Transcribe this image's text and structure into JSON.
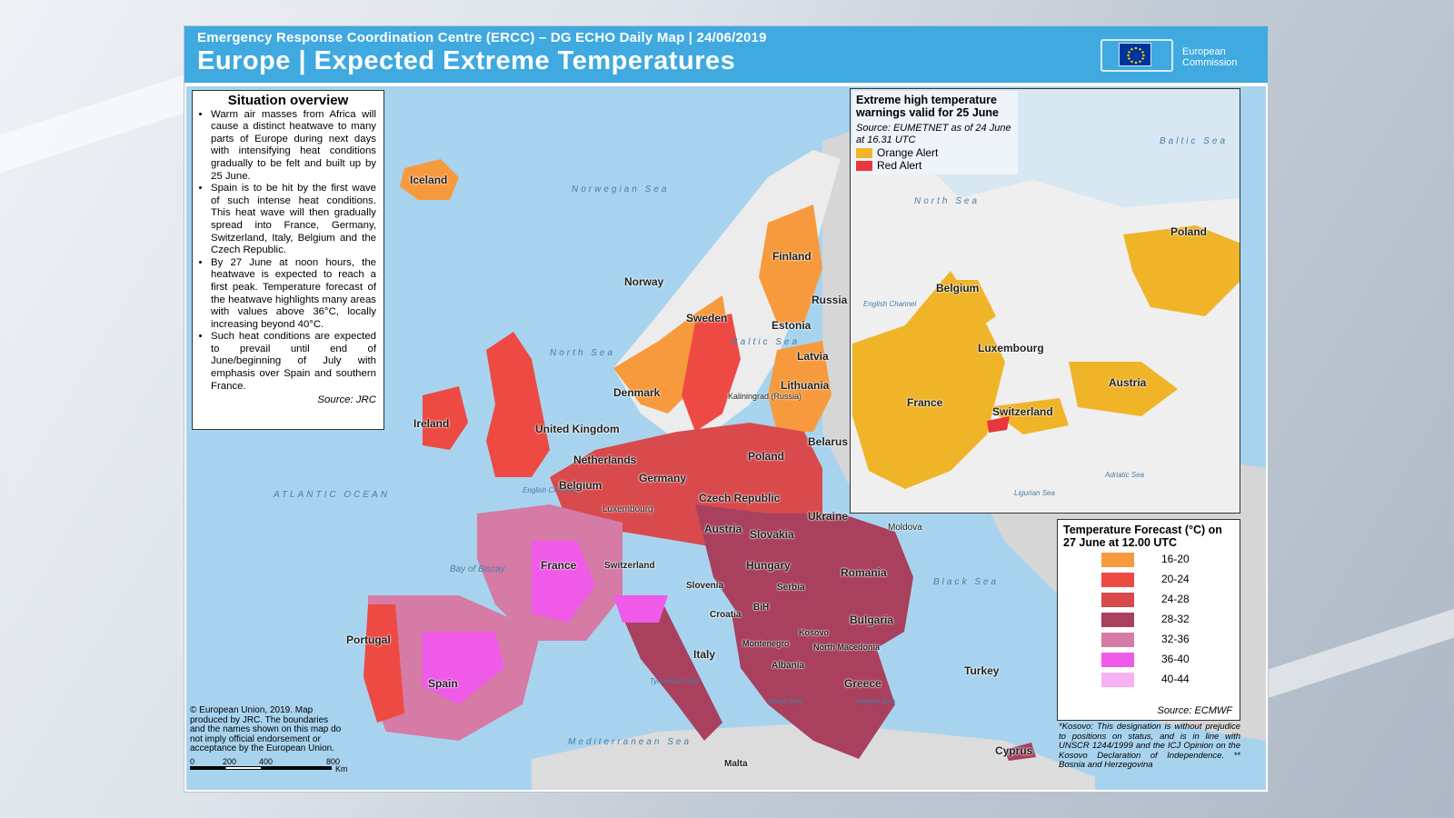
{
  "header": {
    "subtitle": "Emergency Response Coordination Centre (ERCC) – DG ECHO Daily Map | 24/06/2019",
    "title": "Europe | Expected Extreme Temperatures",
    "logo_line1": "European",
    "logo_line2": "Commission"
  },
  "overview": {
    "heading": "Situation overview",
    "bullets": [
      "Warm air masses from Africa will cause a distinct heatwave to many parts of Europe during next days with intensifying heat conditions gradually to be felt and built up by 25 June.",
      "Spain is to be hit by the first wave of such intense heat conditions. This heat wave will then gradually spread into France, Germany, Switzerland, Italy, Belgium and the Czech Republic.",
      "By 27 June at noon hours, the heatwave is expected to reach a first peak. Temperature forecast of the heatwave highlights many areas with values above 36°C, locally increasing beyond 40°C.",
      "Such heat conditions are expected to prevail until end of June/beginning of July with emphasis over Spain and southern France."
    ],
    "source": "Source: JRC"
  },
  "inset": {
    "heading": "Extreme high temperature warnings valid for 25 June",
    "source": "Source: EUMETNET as of 24 June at 16.31 UTC",
    "legend": [
      {
        "label": "Orange Alert",
        "color": "#f0b429"
      },
      {
        "label": "Red Alert",
        "color": "#e8383d"
      }
    ],
    "labels": [
      "Poland",
      "Belgium",
      "Luxembourg",
      "France",
      "Austria",
      "Switzerland"
    ],
    "seas": [
      "North Sea",
      "Baltic Sea",
      "English Channel",
      "Ligurian Sea",
      "Adriatic Sea"
    ]
  },
  "legend": {
    "heading": "Temperature Forecast (°C) on 27 June at 12.00 UTC",
    "items": [
      {
        "label": "16-20",
        "color": "#f79a3e"
      },
      {
        "label": "20-24",
        "color": "#ee4a44"
      },
      {
        "label": "24-28",
        "color": "#d84a4c"
      },
      {
        "label": "28-32",
        "color": "#a8405e"
      },
      {
        "label": "32-36",
        "color": "#d67aa6"
      },
      {
        "label": "36-40",
        "color": "#f05ae8"
      },
      {
        "label": "40-44",
        "color": "#f6b2f2"
      }
    ],
    "source": "Source: ECMWF"
  },
  "copyright": "© European Union, 2019. Map produced by JRC. The boundaries and the names shown on this map do not imply official endorsement or acceptance by the European Union.",
  "scale_labels": [
    "0",
    "200",
    "400",
    "800",
    "Km"
  ],
  "kosovo_note": "*Kosovo: This designation is without prejudice to positions on status, and is in line with UNSCR 1244/1999 and the ICJ Opinion on the Kosovo Declaration of Independence. ** Bosnia and Herzegovina",
  "countries": [
    "Iceland",
    "Norway",
    "Sweden",
    "Finland",
    "Russia",
    "Estonia",
    "Latvia",
    "Lithuania",
    "Denmark",
    "Kaliningrad (Russia)",
    "Belarus",
    "Ireland",
    "United Kingdom",
    "Netherlands",
    "Germany",
    "Poland",
    "Belgium",
    "Luxembourg",
    "Czech Republic",
    "Ukraine",
    "Slovakia",
    "Austria",
    "Moldova",
    "France",
    "Switzerland",
    "Hungary",
    "Romania",
    "Slovenia",
    "Serbia",
    "Croatia",
    "BiH",
    "Bulgaria",
    "Kosovo",
    "Montenegro",
    "Italy",
    "North Macedonia",
    "Albania",
    "Portugal",
    "Spain",
    "Greece",
    "Turkey",
    "Malta",
    "Cyprus"
  ],
  "seas": [
    "Norwegian Sea",
    "North Sea",
    "Baltic Sea",
    "ATLANTIC OCEAN",
    "Bay of Biscay",
    "English Channel",
    "Black Sea",
    "Tyrrhenian Sea",
    "Ionian Sea",
    "Aegean Sea",
    "Mediterranean Sea"
  ]
}
